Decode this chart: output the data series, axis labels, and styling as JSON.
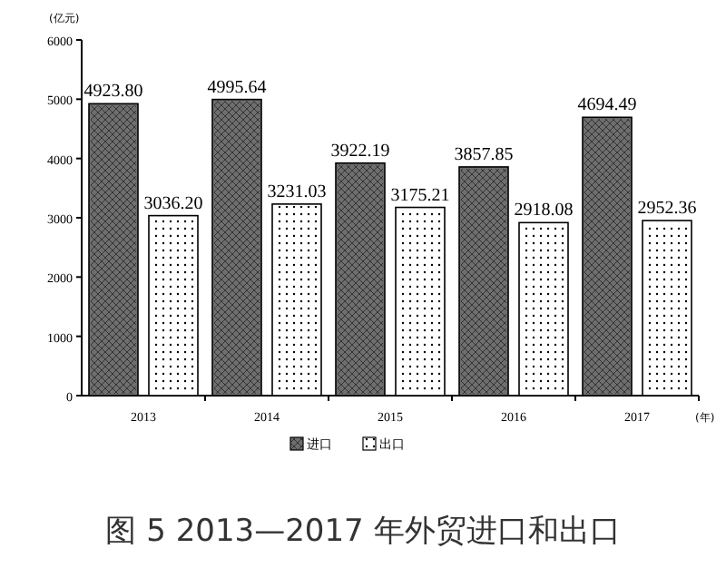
{
  "chart_data": {
    "type": "bar",
    "title": "图 5 2013—2017 年外贸进口和出口",
    "ylabel": "(亿元)",
    "xlabel": "(年)",
    "categories": [
      "2013",
      "2014",
      "2015",
      "2016",
      "2017"
    ],
    "series": [
      {
        "name": "进口",
        "color": "#6e6e6e",
        "values": [
          4923.8,
          4995.64,
          3922.19,
          3857.85,
          4694.49
        ]
      },
      {
        "name": "出口",
        "color": "#ffffff",
        "values": [
          3036.2,
          3231.03,
          3175.21,
          2918.08,
          2952.36
        ]
      }
    ],
    "value_labels": [
      [
        "4923.80",
        "4995.64",
        "3922.19",
        "3857.85",
        "4694.49"
      ],
      [
        "3036.20",
        "3231.03",
        "3175.21",
        "2918.08",
        "2952.36"
      ]
    ],
    "ylim": [
      0,
      6000
    ],
    "yticks": [
      0,
      1000,
      2000,
      3000,
      4000,
      5000,
      6000
    ],
    "legend": "bottom",
    "grid": false
  }
}
